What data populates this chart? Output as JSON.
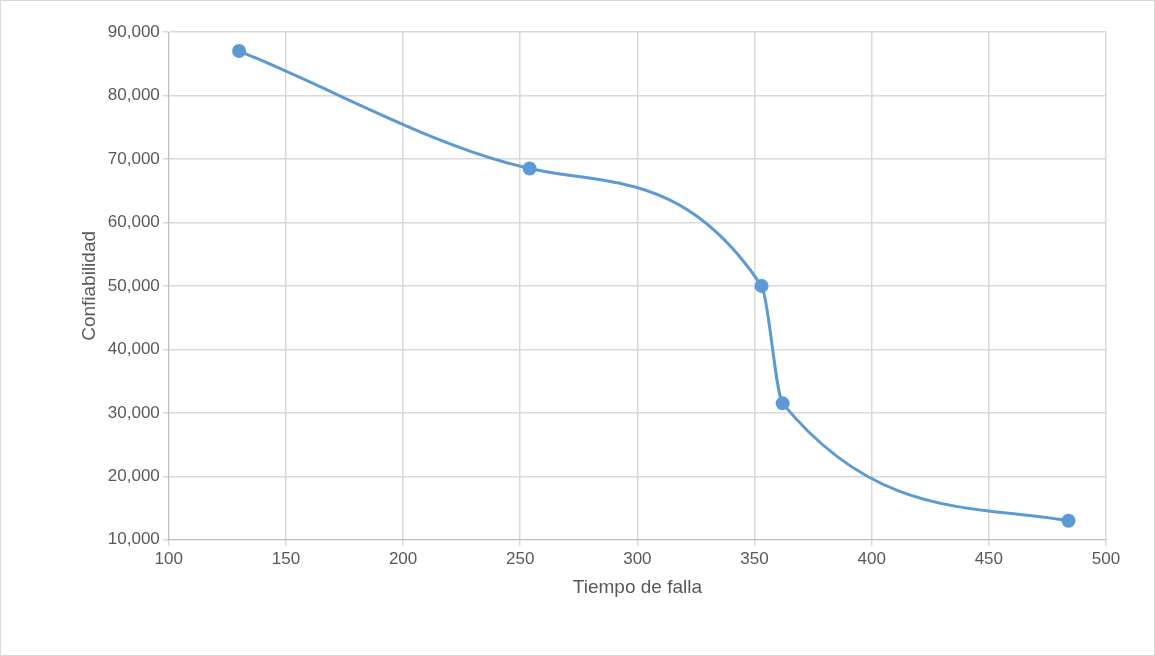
{
  "chart_data": {
    "type": "line",
    "xlabel": "Tiempo de falla",
    "ylabel": "Confiabilidad",
    "x": [
      130,
      254,
      353,
      362,
      484
    ],
    "series": [
      {
        "color": "#5b9bd5",
        "values": [
          87000,
          68500,
          50000,
          31500,
          13000
        ]
      }
    ],
    "xlim": [
      100,
      500
    ],
    "xticks": [
      100,
      150,
      200,
      250,
      300,
      350,
      400,
      450,
      500
    ],
    "ylim": [
      10000,
      90000
    ],
    "yticks": [
      {
        "value": 10000,
        "label": "10,000"
      },
      {
        "value": 20000,
        "label": "20,000"
      },
      {
        "value": 30000,
        "label": "30,000"
      },
      {
        "value": 40000,
        "label": "40,000"
      },
      {
        "value": 50000,
        "label": "50,000"
      },
      {
        "value": 60000,
        "label": "60,000"
      },
      {
        "value": 70000,
        "label": "70,000"
      },
      {
        "value": 80000,
        "label": "80,000"
      },
      {
        "value": 90000,
        "label": "90,000"
      }
    ],
    "grid": true,
    "legend": false,
    "marker": "circle",
    "line_style": "solid"
  }
}
